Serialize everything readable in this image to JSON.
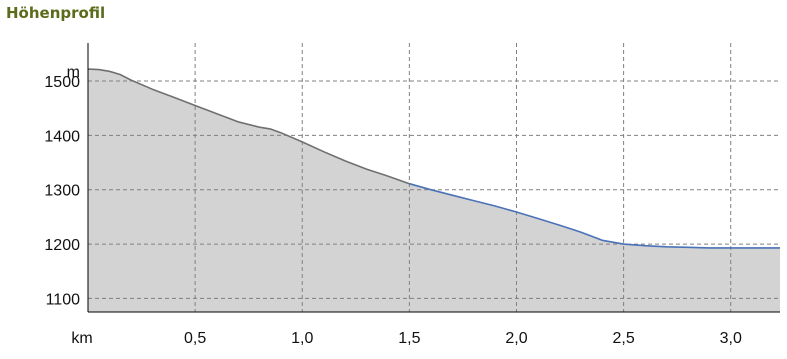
{
  "header": {
    "title": "Höhenprofil"
  },
  "colors": {
    "title": "#5a6b1a",
    "area_fill": "#d3d3d3",
    "line_gray": "#707070",
    "line_blue": "#4a72b8"
  },
  "chart_data": {
    "type": "area",
    "title": "",
    "xlabel": "km",
    "ylabel": "m",
    "xlim": [
      0,
      3.23
    ],
    "ylim": [
      1075,
      1570
    ],
    "x_ticks": [
      0.5,
      1.0,
      1.5,
      2.0,
      2.5,
      3.0
    ],
    "x_tick_labels": [
      "0,5",
      "1,0",
      "1,5",
      "2,0",
      "2,5",
      "3,0"
    ],
    "y_ticks": [
      1100,
      1200,
      1300,
      1400,
      1500
    ],
    "y_tick_labels": [
      "1100",
      "1200",
      "1300",
      "1400",
      "1500"
    ],
    "grid": true,
    "series": [
      {
        "color": "gray",
        "x": [
          0,
          0.05,
          0.1,
          0.15,
          0.2,
          0.3,
          0.4,
          0.5,
          0.6,
          0.7,
          0.8,
          0.85,
          0.9,
          1.0,
          1.1,
          1.2,
          1.3,
          1.4,
          1.5
        ],
        "y": [
          1522,
          1521,
          1518,
          1512,
          1502,
          1485,
          1470,
          1455,
          1440,
          1425,
          1415,
          1412,
          1405,
          1388,
          1370,
          1353,
          1338,
          1325,
          1311
        ]
      },
      {
        "color": "blue",
        "x": [
          1.5,
          1.6,
          1.7,
          1.8,
          1.9,
          2.0,
          2.1,
          2.2,
          2.3,
          2.4,
          2.5,
          2.6,
          2.7,
          2.8,
          2.9,
          3.0,
          3.1,
          3.23
        ],
        "y": [
          1311,
          1300,
          1290,
          1280,
          1270,
          1259,
          1247,
          1235,
          1222,
          1207,
          1200,
          1197,
          1195,
          1194,
          1193,
          1193,
          1193,
          1193
        ]
      }
    ]
  }
}
